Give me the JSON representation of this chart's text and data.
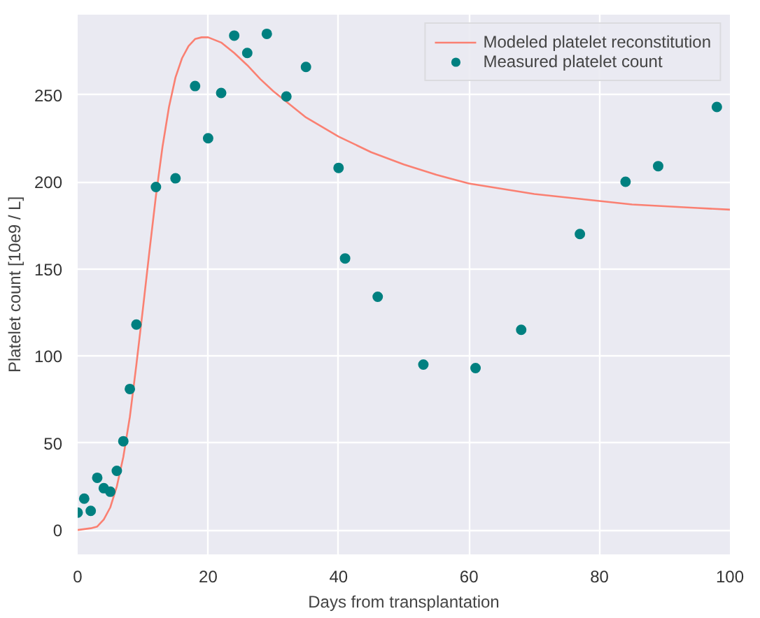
{
  "chart_data": {
    "type": "scatter",
    "xlabel": "Days from transplantation",
    "ylabel": "Platelet count [10e9 / L]",
    "xlim": [
      0,
      100
    ],
    "ylim": [
      -14,
      296
    ],
    "xticks": [
      0,
      20,
      40,
      60,
      80,
      100
    ],
    "yticks": [
      0,
      50,
      100,
      150,
      200,
      250
    ],
    "grid": true,
    "legend": "top right",
    "series": [
      {
        "name": "Modeled platelet reconstitution",
        "type": "line",
        "color": "#fa8072",
        "marker": "none",
        "line_style": "solid",
        "x": [
          0,
          2,
          3,
          4,
          5,
          6,
          7,
          8,
          9,
          10,
          11,
          12,
          13,
          14,
          15,
          16,
          17,
          18,
          19,
          20,
          22,
          24,
          26,
          28,
          30,
          32,
          35,
          40,
          45,
          50,
          55,
          60,
          65,
          70,
          75,
          80,
          85,
          90,
          95,
          100
        ],
        "values": [
          0,
          1,
          2,
          6,
          13,
          25,
          42,
          65,
          95,
          127,
          160,
          192,
          220,
          243,
          260,
          271,
          278,
          282,
          283,
          283,
          280,
          274,
          267,
          259,
          252,
          246,
          237,
          226,
          217,
          210,
          204,
          199,
          196,
          193,
          191,
          189,
          187,
          186,
          185,
          184
        ]
      },
      {
        "name": "Measured platelet count",
        "type": "scatter",
        "color": "#008080",
        "marker": "circle",
        "x": [
          0,
          1,
          2,
          3,
          4,
          5,
          6,
          7,
          8,
          9,
          12,
          15,
          18,
          20,
          22,
          24,
          26,
          29,
          32,
          35,
          40,
          41,
          46,
          53,
          61,
          68,
          77,
          84,
          89,
          98
        ],
        "values": [
          10,
          18,
          11,
          30,
          24,
          22,
          34,
          51,
          81,
          118,
          197,
          202,
          255,
          225,
          251,
          284,
          274,
          285,
          249,
          266,
          208,
          156,
          134,
          95,
          93,
          115,
          170,
          200,
          209,
          243
        ]
      }
    ]
  }
}
